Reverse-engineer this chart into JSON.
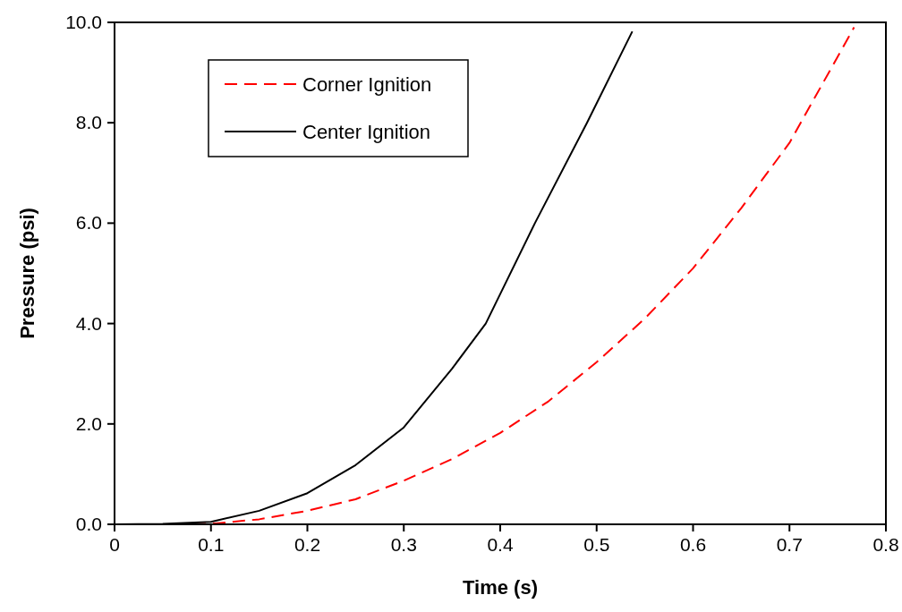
{
  "chart_data": {
    "type": "line",
    "xlabel": "Time (s)",
    "ylabel": "Pressure (psi)",
    "xlim": [
      0,
      0.8
    ],
    "xticks": [
      0,
      0.1,
      0.2,
      0.3,
      0.4,
      0.5,
      0.6,
      0.7,
      0.8
    ],
    "ylim": [
      0,
      10
    ],
    "yticks": [
      {
        "value": 0,
        "label": "0.0"
      },
      {
        "value": 2,
        "label": "2.0"
      },
      {
        "value": 4,
        "label": "4.0"
      },
      {
        "value": 6,
        "label": "6.0"
      },
      {
        "value": 8,
        "label": "8.0"
      },
      {
        "value": 10,
        "label": "10.0"
      }
    ],
    "legend": "top left",
    "grid": false,
    "series": [
      {
        "name": "Corner Ignition",
        "color": "#ff0000",
        "line_style": "dashed",
        "x": [
          0,
          0.05,
          0.1,
          0.15,
          0.2,
          0.25,
          0.3,
          0.35,
          0.4,
          0.45,
          0.5,
          0.55,
          0.6,
          0.65,
          0.7,
          0.767
        ],
        "values": [
          0,
          0,
          0.01,
          0.1,
          0.27,
          0.5,
          0.87,
          1.3,
          1.82,
          2.45,
          3.23,
          4.1,
          5.1,
          6.3,
          7.6,
          9.9
        ]
      },
      {
        "name": "Center Ignition",
        "color": "#000000",
        "line_style": "solid",
        "x": [
          0,
          0.05,
          0.1,
          0.15,
          0.2,
          0.25,
          0.3,
          0.35,
          0.385,
          0.436,
          0.49,
          0.537
        ],
        "values": [
          0,
          0.01,
          0.05,
          0.27,
          0.62,
          1.18,
          1.93,
          3.1,
          4,
          6,
          8,
          9.82
        ]
      }
    ]
  }
}
